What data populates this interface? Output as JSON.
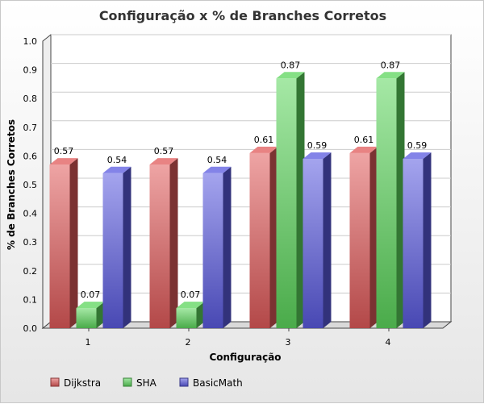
{
  "chart_data": {
    "type": "bar",
    "title": "Configuração x % de Branches Corretos",
    "xlabel": "Configuração",
    "ylabel": "% de Branches Corretos",
    "categories": [
      "1",
      "2",
      "3",
      "4"
    ],
    "ylim": [
      0,
      1.0
    ],
    "yticks": [
      "0.0",
      "0.1",
      "0.2",
      "0.3",
      "0.4",
      "0.5",
      "0.6",
      "0.7",
      "0.8",
      "0.9",
      "1.0"
    ],
    "grid": true,
    "legend_position": "bottom-left",
    "series": [
      {
        "name": "Dijkstra",
        "values": [
          0.57,
          0.57,
          0.61,
          0.61
        ],
        "labels": [
          "0.57",
          "0.57",
          "0.61",
          "0.61"
        ],
        "color": "#e05a5a"
      },
      {
        "name": "SHA",
        "values": [
          0.07,
          0.07,
          0.87,
          0.87
        ],
        "labels": [
          "0.07",
          "0.07",
          "0.87",
          "0.87"
        ],
        "color": "#5cd65c"
      },
      {
        "name": "BasicMath",
        "values": [
          0.54,
          0.54,
          0.59,
          0.59
        ],
        "labels": [
          "0.54",
          "0.54",
          "0.59",
          "0.59"
        ],
        "color": "#5a5ae0"
      }
    ]
  }
}
